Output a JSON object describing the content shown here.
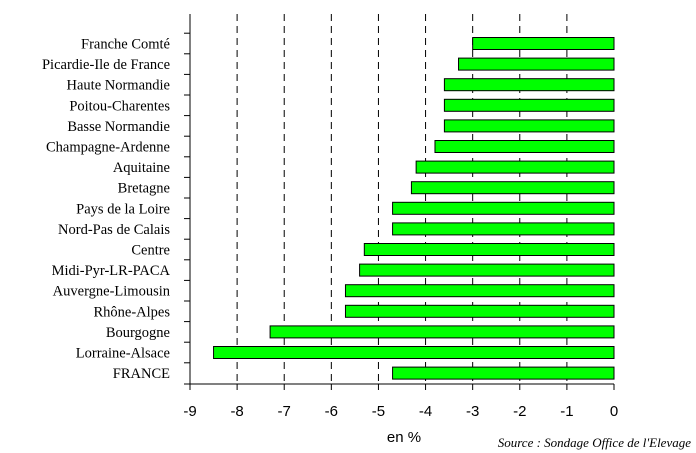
{
  "chart_data": {
    "type": "bar",
    "orientation": "horizontal",
    "categories": [
      "Franche Comté",
      "Picardie-Ile de France",
      "Haute Normandie",
      "Poitou-Charentes",
      "Basse Normandie",
      "Champagne-Ardenne",
      "Aquitaine",
      "Bretagne",
      "Pays de la Loire",
      "Nord-Pas de Calais",
      "Centre",
      "Midi-Pyr-LR-PACA",
      "Auvergne-Limousin",
      "Rhône-Alpes",
      "Bourgogne",
      "Lorraine-Alsace",
      "FRANCE"
    ],
    "values": [
      -3.0,
      -3.3,
      -3.6,
      -3.6,
      -3.6,
      -3.8,
      -4.2,
      -4.3,
      -4.7,
      -4.7,
      -5.3,
      -5.4,
      -5.7,
      -5.7,
      -7.3,
      -8.5,
      -4.7
    ],
    "xlim": [
      -9,
      0
    ],
    "x_ticks": [
      "-9",
      "-8",
      "-7",
      "-6",
      "-5",
      "-4",
      "-3",
      "-2",
      "-1",
      "0"
    ],
    "xlabel": "en %",
    "title": "",
    "grid": "vertical dashed",
    "bar_color": "#00ff00",
    "source": "Source : Sondage Office de l'Elevage"
  }
}
